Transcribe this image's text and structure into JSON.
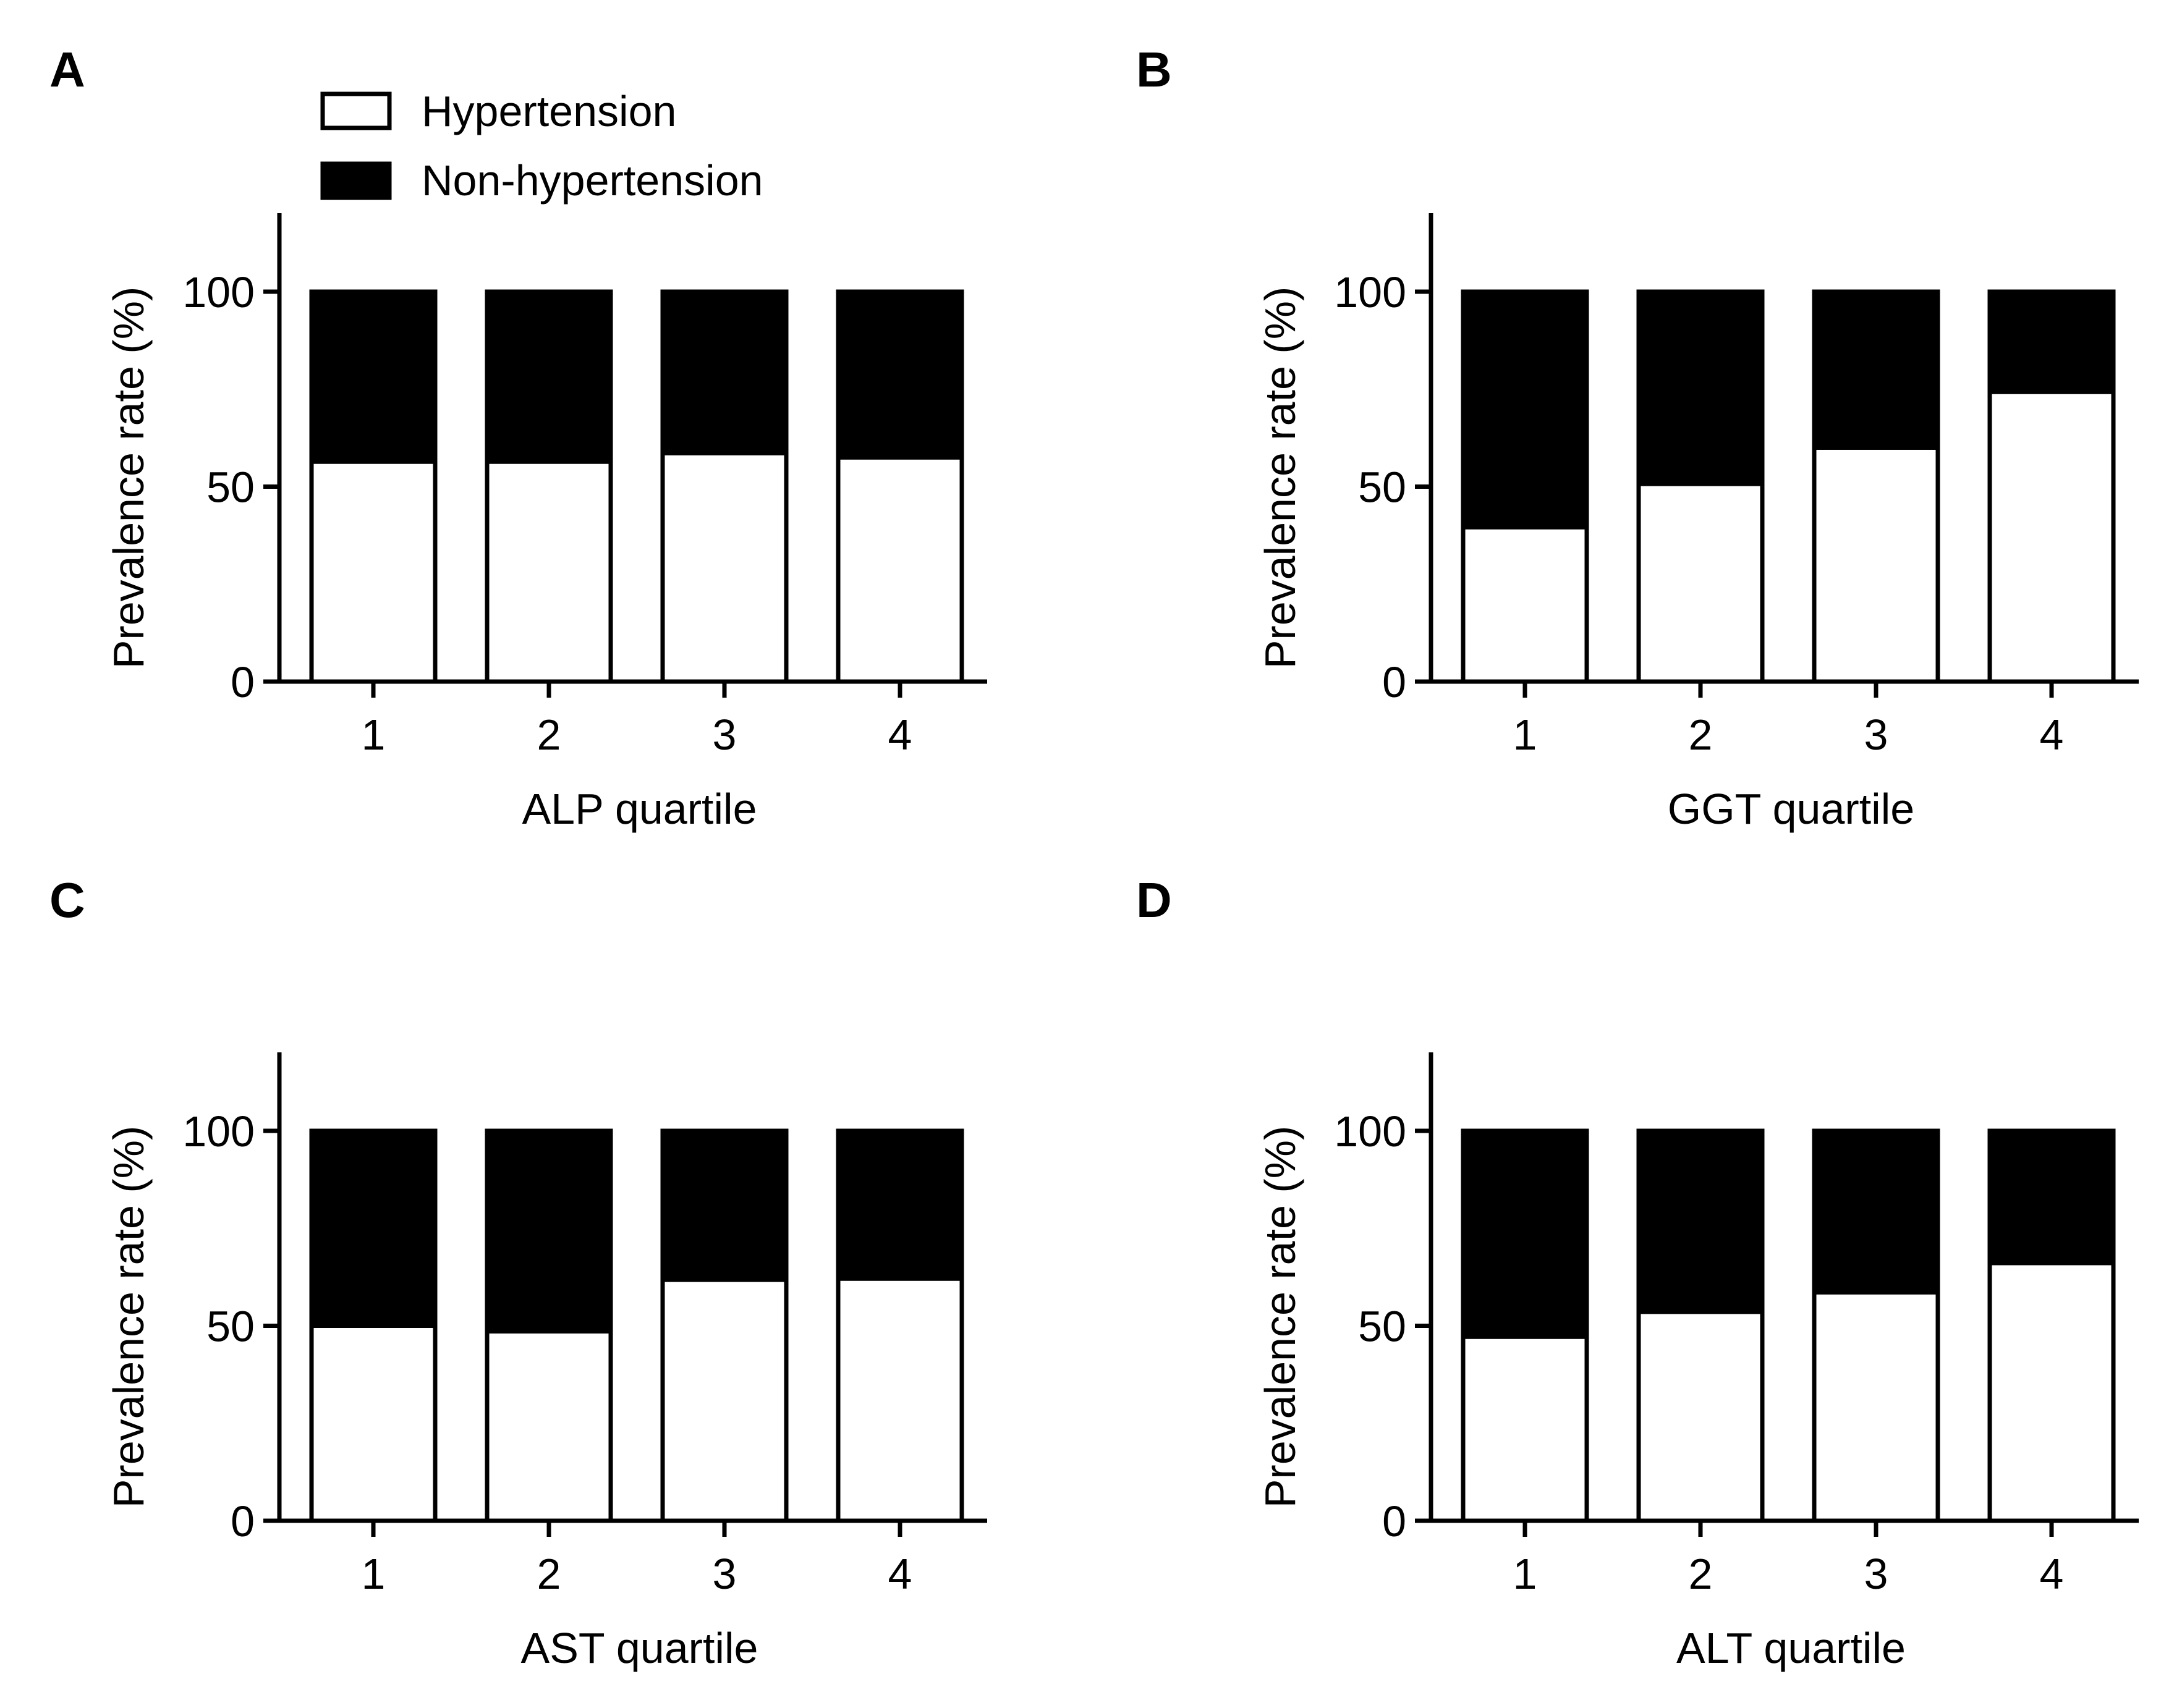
{
  "figure": {
    "legend": {
      "items": [
        {
          "label": "Hypertension",
          "color": "#ffffff"
        },
        {
          "label": "Non-hypertension",
          "color": "#000000"
        }
      ]
    }
  },
  "chart_data": [
    {
      "panel": "A",
      "type": "bar",
      "stacked": true,
      "categories": [
        "1",
        "2",
        "3",
        "4"
      ],
      "series": [
        {
          "name": "Hypertension",
          "color": "#ffffff",
          "values": [
            56.4,
            56.4,
            58.6,
            57.5
          ]
        },
        {
          "name": "Non-hypertension",
          "color": "#000000",
          "values": [
            43.6,
            43.6,
            41.4,
            42.5
          ]
        }
      ],
      "xlabel": "ALP quartile",
      "ylabel": "Prevalence rate (%)",
      "ylim": [
        0,
        120
      ],
      "yticks": [
        0,
        50,
        100
      ]
    },
    {
      "panel": "B",
      "type": "bar",
      "stacked": true,
      "categories": [
        "1",
        "2",
        "3",
        "4"
      ],
      "series": [
        {
          "name": "Hypertension",
          "color": "#ffffff",
          "values": [
            39.6,
            50.7,
            60.0,
            74.3
          ]
        },
        {
          "name": "Non-hypertension",
          "color": "#000000",
          "values": [
            60.4,
            49.3,
            40.0,
            25.7
          ]
        }
      ],
      "xlabel": "GGT quartile",
      "ylabel": "Prevalence rate (%)",
      "ylim": [
        0,
        120
      ],
      "yticks": [
        0,
        50,
        100
      ]
    },
    {
      "panel": "C",
      "type": "bar",
      "stacked": true,
      "categories": [
        "1",
        "2",
        "3",
        "4"
      ],
      "series": [
        {
          "name": "Hypertension",
          "color": "#ffffff",
          "values": [
            50.0,
            48.6,
            61.8,
            62.1
          ]
        },
        {
          "name": "Non-hypertension",
          "color": "#000000",
          "values": [
            50.0,
            51.4,
            38.2,
            37.9
          ]
        }
      ],
      "xlabel": "AST quartile",
      "ylabel": "Prevalence rate (%)",
      "ylim": [
        0,
        120
      ],
      "yticks": [
        0,
        50,
        100
      ]
    },
    {
      "panel": "D",
      "type": "bar",
      "stacked": true,
      "categories": [
        "1",
        "2",
        "3",
        "4"
      ],
      "series": [
        {
          "name": "Hypertension",
          "color": "#ffffff",
          "values": [
            47.2,
            53.6,
            58.6,
            66.1
          ]
        },
        {
          "name": "Non-hypertension",
          "color": "#000000",
          "values": [
            52.8,
            46.4,
            41.4,
            33.9
          ]
        }
      ],
      "xlabel": "ALT quartile",
      "ylabel": "Prevalence rate (%)",
      "ylim": [
        0,
        120
      ],
      "yticks": [
        0,
        50,
        100
      ]
    }
  ]
}
